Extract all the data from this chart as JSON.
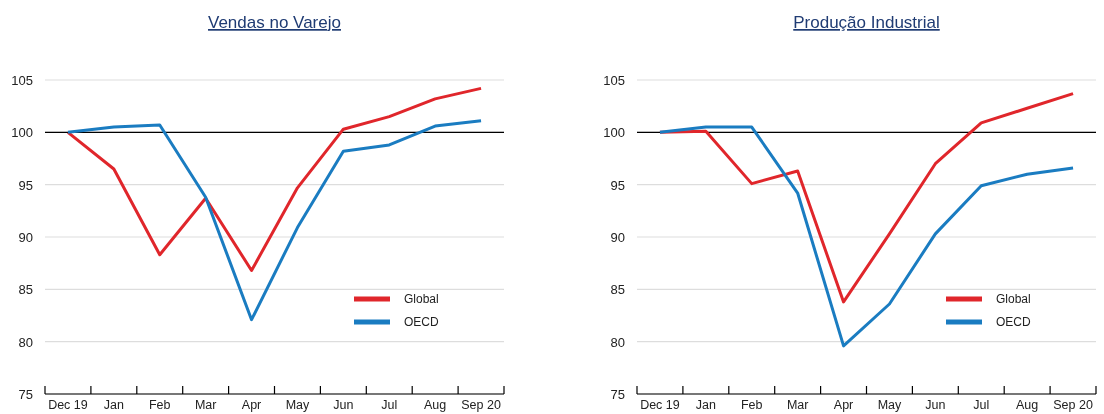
{
  "chart_data": [
    {
      "type": "line",
      "title": "Vendas no Varejo",
      "categories": [
        "Dec 19",
        "Jan",
        "Feb",
        "Mar",
        "Apr",
        "May",
        "Jun",
        "Jul",
        "Aug",
        "Sep 20"
      ],
      "series": [
        {
          "name": "Global",
          "color": "#e0262b",
          "values": [
            100,
            96.5,
            88.3,
            93.7,
            86.8,
            94.7,
            100.3,
            101.5,
            103.2,
            104.2
          ]
        },
        {
          "name": "OECD",
          "color": "#1a7cc1",
          "values": [
            100,
            100.5,
            100.7,
            93.8,
            82.1,
            90.9,
            98.2,
            98.8,
            100.6,
            101.1
          ]
        }
      ],
      "ylim": [
        75,
        105
      ],
      "yticks": [
        75,
        80,
        85,
        90,
        95,
        100,
        105
      ],
      "grid": "y",
      "legend": "bottom right",
      "ref_lines": [
        {
          "axis": "y",
          "value": 100,
          "color": "#000000"
        }
      ]
    },
    {
      "type": "line",
      "title": "Produção Industrial",
      "categories": [
        "Dec 19",
        "Jan",
        "Feb",
        "Mar",
        "Apr",
        "May",
        "Jun",
        "Jul",
        "Aug",
        "Sep 20"
      ],
      "series": [
        {
          "name": "Global",
          "color": "#e0262b",
          "values": [
            100,
            100.1,
            95.1,
            96.3,
            83.8,
            90.3,
            97.0,
            100.9,
            102.3,
            103.7
          ]
        },
        {
          "name": "OECD",
          "color": "#1a7cc1",
          "values": [
            100,
            100.5,
            100.5,
            94.2,
            79.6,
            83.6,
            90.3,
            94.9,
            96.0,
            96.6
          ]
        }
      ],
      "ylim": [
        75,
        105
      ],
      "yticks": [
        75,
        80,
        85,
        90,
        95,
        100,
        105
      ],
      "grid": "y",
      "legend": "bottom right",
      "ref_lines": [
        {
          "axis": "y",
          "value": 100,
          "color": "#000000"
        }
      ]
    }
  ]
}
